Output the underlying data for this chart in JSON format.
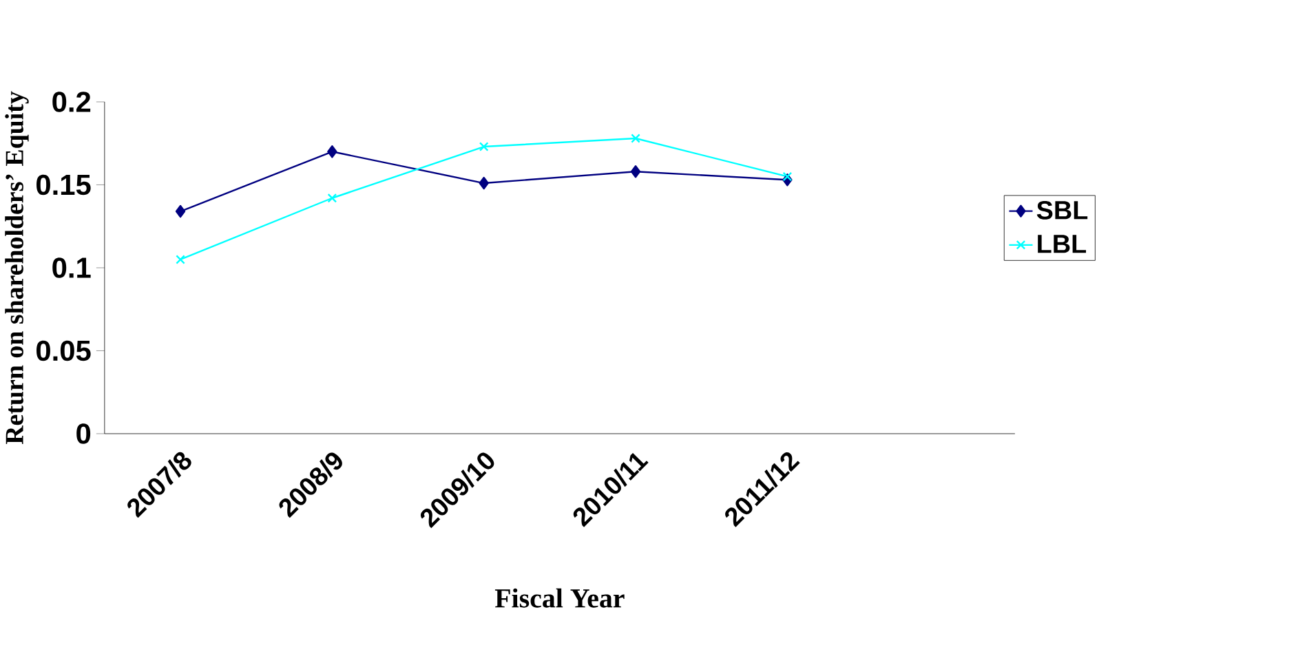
{
  "chart_data": {
    "type": "line",
    "xlabel": "Fiscal Year",
    "ylabel": "Return on shareholders’ Equity",
    "categories": [
      "2007/8",
      "2008/9",
      "2009/10",
      "2010/11",
      "2011/12",
      null
    ],
    "series": [
      {
        "name": "SBL",
        "color": "#000080",
        "marker": "diamond",
        "values": [
          0.134,
          0.17,
          0.151,
          0.158,
          0.153,
          null
        ]
      },
      {
        "name": "LBL",
        "color": "#00ffff",
        "marker": "cross",
        "values": [
          0.105,
          0.142,
          0.173,
          0.178,
          0.155,
          null
        ]
      }
    ],
    "ylim": [
      0,
      0.2
    ],
    "yticks": [
      0,
      0.05,
      0.1,
      0.15,
      0.2
    ],
    "grid": false,
    "legend": "right"
  }
}
